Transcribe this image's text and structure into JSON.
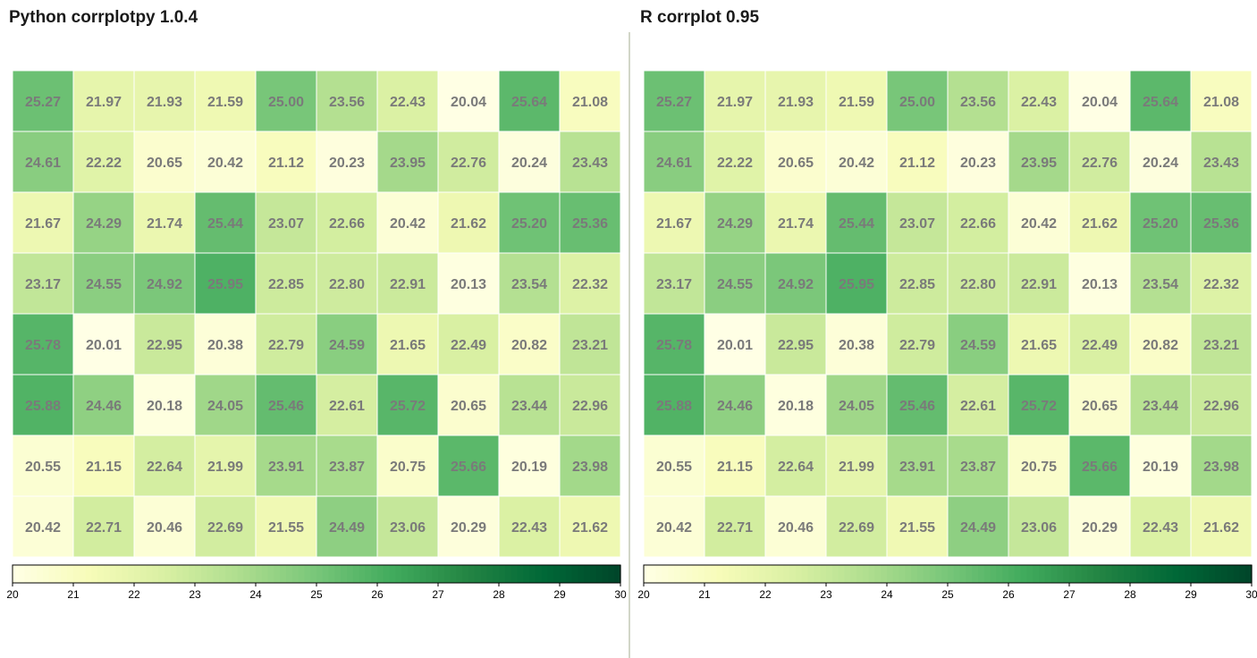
{
  "panels": [
    {
      "title": "Python corrplotpy 1.0.4"
    },
    {
      "title": "R corrplot 0.95"
    }
  ],
  "chart_data": [
    {
      "type": "heatmap",
      "title": "Python corrplotpy 1.0.4",
      "values": [
        [
          25.27,
          21.97,
          21.93,
          21.59,
          25.0,
          23.56,
          22.43,
          20.04,
          25.64,
          21.08
        ],
        [
          24.61,
          22.22,
          20.65,
          20.42,
          21.12,
          20.23,
          23.95,
          22.76,
          20.24,
          23.43
        ],
        [
          21.67,
          24.29,
          21.74,
          25.44,
          23.07,
          22.66,
          20.42,
          21.62,
          25.2,
          25.36
        ],
        [
          23.17,
          24.55,
          24.92,
          25.95,
          22.85,
          22.8,
          22.91,
          20.13,
          23.54,
          22.32
        ],
        [
          25.78,
          20.01,
          22.95,
          20.38,
          22.79,
          24.59,
          21.65,
          22.49,
          20.82,
          23.21
        ],
        [
          25.88,
          24.46,
          20.18,
          24.05,
          25.46,
          22.61,
          25.72,
          20.65,
          23.44,
          22.96
        ],
        [
          20.55,
          21.15,
          22.64,
          21.99,
          23.91,
          23.87,
          20.75,
          25.66,
          20.19,
          23.98
        ],
        [
          20.42,
          22.71,
          20.46,
          22.69,
          21.55,
          24.49,
          23.06,
          20.29,
          22.43,
          21.62
        ]
      ],
      "colorbar": {
        "range": [
          20,
          30
        ],
        "ticks": [
          "20",
          "21",
          "22",
          "23",
          "24",
          "25",
          "26",
          "27",
          "28",
          "29",
          "30"
        ]
      },
      "colormap": [
        "#ffffe5",
        "#f7fcb9",
        "#d9f0a3",
        "#addd8e",
        "#78c679",
        "#41ab5d",
        "#238443",
        "#006837",
        "#004529"
      ]
    },
    {
      "type": "heatmap",
      "title": "R corrplot 0.95",
      "values": [
        [
          25.27,
          21.97,
          21.93,
          21.59,
          25.0,
          23.56,
          22.43,
          20.04,
          25.64,
          21.08
        ],
        [
          24.61,
          22.22,
          20.65,
          20.42,
          21.12,
          20.23,
          23.95,
          22.76,
          20.24,
          23.43
        ],
        [
          21.67,
          24.29,
          21.74,
          25.44,
          23.07,
          22.66,
          20.42,
          21.62,
          25.2,
          25.36
        ],
        [
          23.17,
          24.55,
          24.92,
          25.95,
          22.85,
          22.8,
          22.91,
          20.13,
          23.54,
          22.32
        ],
        [
          25.78,
          20.01,
          22.95,
          20.38,
          22.79,
          24.59,
          21.65,
          22.49,
          20.82,
          23.21
        ],
        [
          25.88,
          24.46,
          20.18,
          24.05,
          25.46,
          22.61,
          25.72,
          20.65,
          23.44,
          22.96
        ],
        [
          20.55,
          21.15,
          22.64,
          21.99,
          23.91,
          23.87,
          20.75,
          25.66,
          20.19,
          23.98
        ],
        [
          20.42,
          22.71,
          20.46,
          22.69,
          21.55,
          24.49,
          23.06,
          20.29,
          22.43,
          21.62
        ]
      ],
      "colorbar": {
        "range": [
          20,
          30
        ],
        "ticks": [
          "20",
          "21",
          "22",
          "23",
          "24",
          "25",
          "26",
          "27",
          "28",
          "29",
          "30"
        ]
      },
      "colormap": [
        "#ffffe5",
        "#f7fcb9",
        "#d9f0a3",
        "#addd8e",
        "#78c679",
        "#41ab5d",
        "#238443",
        "#006837",
        "#004529"
      ]
    }
  ]
}
